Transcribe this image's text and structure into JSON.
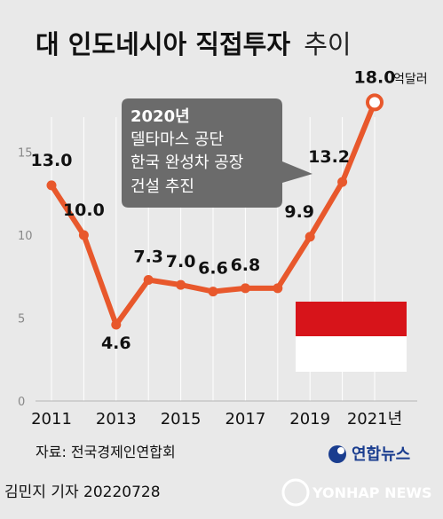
{
  "title_main": "대 인도네시아 직접투자",
  "title_suffix": "추이",
  "unit_label": "억달러",
  "callout": {
    "year": "2020년",
    "line1": "델타마스 공단",
    "line2": "한국 완성차 공장",
    "line3": "건설 추진"
  },
  "source": "자료: 전국경제인연합회",
  "logo": "연합뉴스",
  "footer": "김민지 기자  20220728",
  "watermark": "YONHAP NEWS",
  "colors": {
    "line": "#e8582c",
    "background": "#e9e9e9",
    "callout": "#6b6b6b",
    "flag_red": "#d7141a",
    "flag_white": "#ffffff"
  },
  "chart_data": {
    "type": "line",
    "x": [
      2011,
      2012,
      2013,
      2014,
      2015,
      2016,
      2017,
      2018,
      2019,
      2020,
      2021
    ],
    "values": [
      13.0,
      10.0,
      4.6,
      7.3,
      7.0,
      6.6,
      6.8,
      6.8,
      9.9,
      13.2,
      18.0
    ],
    "data_labels": [
      "13.0",
      "10.0",
      "4.6",
      "7.3",
      "7.0",
      "6.6",
      "6.8",
      "",
      "9.9",
      "13.2",
      "18.0"
    ],
    "xtick_labels": [
      "2011",
      "2013",
      "2015",
      "2017",
      "2019",
      "2021년"
    ],
    "xtick_years": [
      2011,
      2013,
      2015,
      2017,
      2019,
      2021
    ],
    "ytick_values": [
      0,
      5,
      10,
      15
    ],
    "ylim": [
      0,
      18
    ],
    "grid": "vertical"
  }
}
